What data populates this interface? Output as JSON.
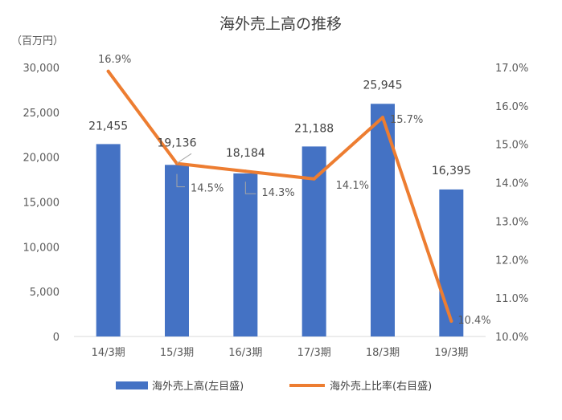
{
  "chart_data": {
    "type": "bar",
    "title": "海外売上高の推移",
    "y_left_unit": "（百万円）",
    "categories": [
      "14/3期",
      "15/3期",
      "16/3期",
      "17/3期",
      "18/3期",
      "19/3期"
    ],
    "series": [
      {
        "name": "海外売上高(左目盛)",
        "type": "bar",
        "axis": "left",
        "color": "#4472C4",
        "values": [
          21455,
          19136,
          18184,
          21188,
          25945,
          16395
        ],
        "labels": [
          "21,455",
          "19,136",
          "18,184",
          "21,188",
          "25,945",
          "16,395"
        ]
      },
      {
        "name": "海外売上比率(右目盛)",
        "type": "line",
        "axis": "right",
        "color": "#ED7D31",
        "values": [
          16.9,
          14.5,
          14.3,
          14.1,
          15.7,
          10.4
        ],
        "labels": [
          "16.9%",
          "14.5%",
          "14.3%",
          "14.1%",
          "15.7%",
          "10.4%"
        ]
      }
    ],
    "y_left": {
      "min": 0,
      "max": 30000,
      "step": 5000,
      "tick_labels": [
        "0",
        "5,000",
        "10,000",
        "15,000",
        "20,000",
        "25,000",
        "30,000"
      ]
    },
    "y_right": {
      "min": 10.0,
      "max": 17.0,
      "step": 1.0,
      "tick_labels": [
        "10.0%",
        "11.0%",
        "12.0%",
        "13.0%",
        "14.0%",
        "15.0%",
        "16.0%",
        "17.0%"
      ]
    },
    "grid": false,
    "legend_position": "bottom"
  }
}
